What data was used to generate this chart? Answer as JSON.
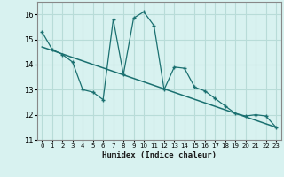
{
  "x": [
    0,
    1,
    2,
    3,
    4,
    5,
    6,
    7,
    8,
    9,
    10,
    11,
    12,
    13,
    14,
    15,
    16,
    17,
    18,
    19,
    20,
    21,
    22,
    23
  ],
  "y": [
    15.3,
    14.6,
    14.4,
    14.1,
    13.0,
    12.9,
    12.6,
    15.8,
    13.6,
    15.85,
    16.1,
    15.55,
    13.0,
    13.9,
    13.85,
    13.1,
    12.95,
    12.65,
    12.35,
    12.05,
    11.95,
    12.0,
    11.95,
    11.5
  ],
  "trend_x": [
    0,
    23
  ],
  "trend_y": [
    14.7,
    11.5
  ],
  "xlabel": "Humidex (Indice chaleur)",
  "ylim": [
    11,
    16.5
  ],
  "xlim": [
    -0.5,
    23.5
  ],
  "yticks": [
    11,
    12,
    13,
    14,
    15,
    16
  ],
  "xticks": [
    0,
    1,
    2,
    3,
    4,
    5,
    6,
    7,
    8,
    9,
    10,
    11,
    12,
    13,
    14,
    15,
    16,
    17,
    18,
    19,
    20,
    21,
    22,
    23
  ],
  "line_color": "#1a7070",
  "bg_color": "#d8f2f0",
  "grid_color": "#b8dcd8"
}
